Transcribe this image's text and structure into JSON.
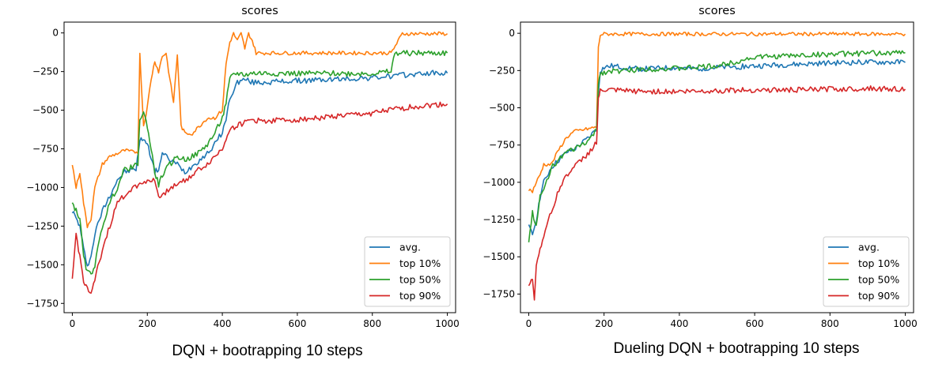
{
  "colors": {
    "avg": "#1f77b4",
    "top10": "#ff7f0e",
    "top50": "#2ca02c",
    "top90": "#d62728"
  },
  "chart_data": [
    {
      "type": "line",
      "title": "scores",
      "caption": "DQN + bootrapping 10 steps",
      "xlim": [
        -22,
        1022
      ],
      "ylim": [
        -1810,
        70
      ],
      "xticks": [
        0,
        200,
        400,
        600,
        800,
        1000
      ],
      "yticks": [
        0,
        -250,
        -500,
        -750,
        -1000,
        -1250,
        -1500,
        -1750
      ],
      "legend_position": "lower-right",
      "grid": false,
      "series": [
        {
          "name": "avg.",
          "key": "avg",
          "points": [
            [
              0,
              -1150
            ],
            [
              10,
              -1200
            ],
            [
              20,
              -1250
            ],
            [
              30,
              -1400
            ],
            [
              40,
              -1500
            ],
            [
              50,
              -1450
            ],
            [
              60,
              -1300
            ],
            [
              80,
              -1150
            ],
            [
              100,
              -1050
            ],
            [
              120,
              -950
            ],
            [
              140,
              -900
            ],
            [
              170,
              -880
            ],
            [
              180,
              -700
            ],
            [
              190,
              -680
            ],
            [
              200,
              -720
            ],
            [
              210,
              -800
            ],
            [
              220,
              -900
            ],
            [
              230,
              -880
            ],
            [
              240,
              -780
            ],
            [
              260,
              -820
            ],
            [
              280,
              -850
            ],
            [
              300,
              -900
            ],
            [
              320,
              -860
            ],
            [
              340,
              -820
            ],
            [
              360,
              -780
            ],
            [
              380,
              -720
            ],
            [
              400,
              -640
            ],
            [
              410,
              -560
            ],
            [
              420,
              -420
            ],
            [
              440,
              -320
            ],
            [
              460,
              -300
            ],
            [
              480,
              -320
            ],
            [
              500,
              -320
            ],
            [
              600,
              -310
            ],
            [
              700,
              -300
            ],
            [
              800,
              -290
            ],
            [
              900,
              -270
            ],
            [
              950,
              -260
            ],
            [
              1000,
              -260
            ]
          ]
        },
        {
          "name": "top 10%",
          "key": "top10",
          "points": [
            [
              0,
              -850
            ],
            [
              10,
              -1000
            ],
            [
              20,
              -900
            ],
            [
              30,
              -1100
            ],
            [
              40,
              -1250
            ],
            [
              50,
              -1200
            ],
            [
              60,
              -1000
            ],
            [
              80,
              -850
            ],
            [
              100,
              -800
            ],
            [
              120,
              -780
            ],
            [
              140,
              -760
            ],
            [
              160,
              -770
            ],
            [
              175,
              -770
            ],
            [
              180,
              -140
            ],
            [
              190,
              -600
            ],
            [
              200,
              -480
            ],
            [
              210,
              -300
            ],
            [
              220,
              -180
            ],
            [
              230,
              -250
            ],
            [
              240,
              -150
            ],
            [
              250,
              -130
            ],
            [
              260,
              -300
            ],
            [
              270,
              -450
            ],
            [
              280,
              -140
            ],
            [
              290,
              -600
            ],
            [
              300,
              -650
            ],
            [
              320,
              -650
            ],
            [
              340,
              -600
            ],
            [
              360,
              -550
            ],
            [
              380,
              -550
            ],
            [
              400,
              -500
            ],
            [
              410,
              -200
            ],
            [
              420,
              -60
            ],
            [
              430,
              -5
            ],
            [
              440,
              -50
            ],
            [
              450,
              -5
            ],
            [
              460,
              -100
            ],
            [
              470,
              -5
            ],
            [
              480,
              -50
            ],
            [
              490,
              -130
            ],
            [
              500,
              -130
            ],
            [
              600,
              -130
            ],
            [
              700,
              -130
            ],
            [
              800,
              -130
            ],
            [
              850,
              -130
            ],
            [
              880,
              -5
            ],
            [
              900,
              -5
            ],
            [
              950,
              -5
            ],
            [
              1000,
              -5
            ]
          ]
        },
        {
          "name": "top 50%",
          "key": "top50",
          "points": [
            [
              0,
              -1100
            ],
            [
              10,
              -1150
            ],
            [
              20,
              -1200
            ],
            [
              30,
              -1450
            ],
            [
              40,
              -1550
            ],
            [
              50,
              -1560
            ],
            [
              60,
              -1500
            ],
            [
              80,
              -1250
            ],
            [
              100,
              -1100
            ],
            [
              120,
              -1000
            ],
            [
              140,
              -880
            ],
            [
              160,
              -870
            ],
            [
              175,
              -850
            ],
            [
              180,
              -550
            ],
            [
              190,
              -520
            ],
            [
              200,
              -600
            ],
            [
              210,
              -750
            ],
            [
              220,
              -900
            ],
            [
              230,
              -980
            ],
            [
              240,
              -920
            ],
            [
              260,
              -850
            ],
            [
              280,
              -800
            ],
            [
              300,
              -820
            ],
            [
              320,
              -800
            ],
            [
              340,
              -770
            ],
            [
              360,
              -720
            ],
            [
              380,
              -650
            ],
            [
              400,
              -550
            ],
            [
              410,
              -450
            ],
            [
              420,
              -300
            ],
            [
              430,
              -270
            ],
            [
              440,
              -260
            ],
            [
              460,
              -270
            ],
            [
              480,
              -260
            ],
            [
              500,
              -260
            ],
            [
              600,
              -262
            ],
            [
              700,
              -262
            ],
            [
              800,
              -262
            ],
            [
              850,
              -250
            ],
            [
              860,
              -130
            ],
            [
              900,
              -130
            ],
            [
              950,
              -130
            ],
            [
              1000,
              -130
            ]
          ]
        },
        {
          "name": "top 90%",
          "key": "top90",
          "points": [
            [
              0,
              -1600
            ],
            [
              10,
              -1300
            ],
            [
              20,
              -1450
            ],
            [
              30,
              -1600
            ],
            [
              40,
              -1650
            ],
            [
              50,
              -1700
            ],
            [
              60,
              -1600
            ],
            [
              80,
              -1400
            ],
            [
              100,
              -1250
            ],
            [
              120,
              -1100
            ],
            [
              140,
              -1050
            ],
            [
              160,
              -1000
            ],
            [
              180,
              -980
            ],
            [
              200,
              -950
            ],
            [
              220,
              -960
            ],
            [
              230,
              -1050
            ],
            [
              240,
              -1060
            ],
            [
              260,
              -1000
            ],
            [
              280,
              -980
            ],
            [
              300,
              -950
            ],
            [
              320,
              -920
            ],
            [
              340,
              -880
            ],
            [
              360,
              -850
            ],
            [
              380,
              -800
            ],
            [
              400,
              -750
            ],
            [
              410,
              -680
            ],
            [
              420,
              -620
            ],
            [
              440,
              -600
            ],
            [
              460,
              -580
            ],
            [
              480,
              -560
            ],
            [
              500,
              -570
            ],
            [
              600,
              -560
            ],
            [
              700,
              -540
            ],
            [
              800,
              -520
            ],
            [
              900,
              -480
            ],
            [
              950,
              -470
            ],
            [
              1000,
              -460
            ]
          ]
        }
      ]
    },
    {
      "type": "line",
      "title": "scores",
      "caption": "Dueling DQN + bootrapping 10 steps",
      "xlim": [
        -22,
        1022
      ],
      "ylim": [
        -1875,
        75
      ],
      "xticks": [
        0,
        200,
        400,
        600,
        800,
        1000
      ],
      "yticks": [
        0,
        -250,
        -500,
        -750,
        -1000,
        -1250,
        -1500,
        -1750
      ],
      "legend_position": "lower-right",
      "grid": false,
      "series": [
        {
          "name": "avg.",
          "key": "avg",
          "points": [
            [
              0,
              -1300
            ],
            [
              10,
              -1350
            ],
            [
              20,
              -1250
            ],
            [
              30,
              -1100
            ],
            [
              40,
              -1000
            ],
            [
              60,
              -900
            ],
            [
              80,
              -850
            ],
            [
              100,
              -800
            ],
            [
              120,
              -780
            ],
            [
              140,
              -740
            ],
            [
              160,
              -700
            ],
            [
              180,
              -640
            ],
            [
              185,
              -400
            ],
            [
              190,
              -250
            ],
            [
              200,
              -230
            ],
            [
              220,
              -220
            ],
            [
              260,
              -230
            ],
            [
              300,
              -240
            ],
            [
              400,
              -230
            ],
            [
              420,
              -240
            ],
            [
              500,
              -230
            ],
            [
              600,
              -220
            ],
            [
              700,
              -210
            ],
            [
              800,
              -200
            ],
            [
              900,
              -195
            ],
            [
              1000,
              -195
            ]
          ]
        },
        {
          "name": "top 10%",
          "key": "top10",
          "points": [
            [
              0,
              -1050
            ],
            [
              10,
              -1060
            ],
            [
              20,
              -1000
            ],
            [
              30,
              -950
            ],
            [
              40,
              -880
            ],
            [
              60,
              -880
            ],
            [
              80,
              -780
            ],
            [
              100,
              -700
            ],
            [
              120,
              -660
            ],
            [
              140,
              -650
            ],
            [
              160,
              -640
            ],
            [
              180,
              -630
            ],
            [
              185,
              -100
            ],
            [
              190,
              -10
            ],
            [
              200,
              -5
            ],
            [
              300,
              -5
            ],
            [
              400,
              -5
            ],
            [
              500,
              -5
            ],
            [
              600,
              -5
            ],
            [
              700,
              -5
            ],
            [
              800,
              -5
            ],
            [
              900,
              -5
            ],
            [
              1000,
              -5
            ]
          ]
        },
        {
          "name": "top 50%",
          "key": "top50",
          "points": [
            [
              0,
              -1400
            ],
            [
              10,
              -1200
            ],
            [
              20,
              -1300
            ],
            [
              30,
              -1100
            ],
            [
              40,
              -1050
            ],
            [
              60,
              -900
            ],
            [
              80,
              -850
            ],
            [
              100,
              -800
            ],
            [
              120,
              -780
            ],
            [
              140,
              -750
            ],
            [
              160,
              -720
            ],
            [
              180,
              -650
            ],
            [
              185,
              -330
            ],
            [
              190,
              -270
            ],
            [
              200,
              -260
            ],
            [
              260,
              -250
            ],
            [
              300,
              -240
            ],
            [
              400,
              -235
            ],
            [
              500,
              -220
            ],
            [
              600,
              -160
            ],
            [
              700,
              -150
            ],
            [
              800,
              -140
            ],
            [
              900,
              -135
            ],
            [
              1000,
              -130
            ]
          ]
        },
        {
          "name": "top 90%",
          "key": "top90",
          "points": [
            [
              0,
              -1700
            ],
            [
              10,
              -1650
            ],
            [
              15,
              -1780
            ],
            [
              20,
              -1550
            ],
            [
              30,
              -1450
            ],
            [
              40,
              -1350
            ],
            [
              60,
              -1200
            ],
            [
              80,
              -1050
            ],
            [
              100,
              -950
            ],
            [
              120,
              -900
            ],
            [
              140,
              -850
            ],
            [
              160,
              -800
            ],
            [
              180,
              -730
            ],
            [
              185,
              -440
            ],
            [
              190,
              -390
            ],
            [
              200,
              -380
            ],
            [
              300,
              -390
            ],
            [
              400,
              -390
            ],
            [
              500,
              -385
            ],
            [
              600,
              -380
            ],
            [
              700,
              -380
            ],
            [
              800,
              -375
            ],
            [
              900,
              -370
            ],
            [
              1000,
              -375
            ]
          ]
        }
      ]
    }
  ]
}
